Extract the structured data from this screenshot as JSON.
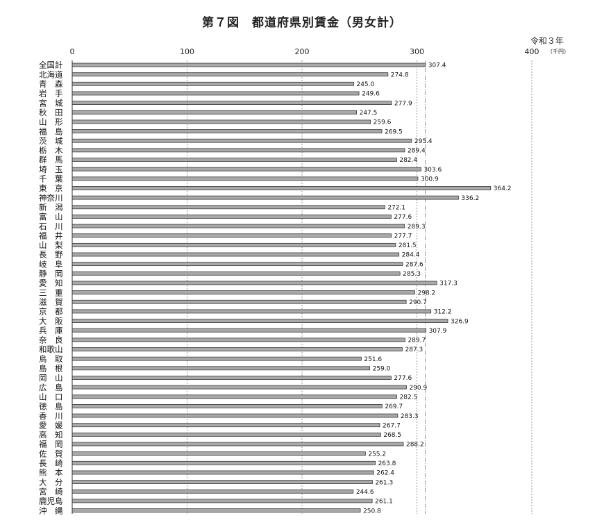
{
  "chart_data": {
    "type": "bar",
    "orientation": "horizontal",
    "title": "第７図　都道府県別賃金（男女計）",
    "note": "令和３年",
    "unit": "（千円）",
    "xlim": [
      0,
      400
    ],
    "xticks": [
      0,
      100,
      200,
      300,
      400
    ],
    "reference_value": 307.4,
    "categories": [
      "全国計",
      "北海道",
      "青　森",
      "岩　手",
      "宮　城",
      "秋　田",
      "山　形",
      "福　島",
      "茨　城",
      "栃　木",
      "群　馬",
      "埼　玉",
      "千　葉",
      "東　京",
      "神奈川",
      "新　潟",
      "富　山",
      "石　川",
      "福　井",
      "山　梨",
      "長　野",
      "岐　阜",
      "静　岡",
      "愛　知",
      "三　重",
      "滋　賀",
      "京　都",
      "大　阪",
      "兵　庫",
      "奈　良",
      "和歌山",
      "鳥　取",
      "島　根",
      "岡　山",
      "広　島",
      "山　口",
      "徳　島",
      "香　川",
      "愛　媛",
      "高　知",
      "福　岡",
      "佐　賀",
      "長　崎",
      "熊　本",
      "大　分",
      "宮　崎",
      "鹿児島",
      "沖　縄"
    ],
    "values": [
      307.4,
      274.8,
      245.0,
      249.6,
      277.9,
      247.5,
      259.6,
      269.5,
      295.4,
      289.4,
      282.4,
      303.6,
      300.9,
      364.2,
      336.2,
      272.1,
      277.6,
      289.3,
      277.7,
      281.5,
      284.4,
      287.6,
      285.3,
      317.3,
      298.2,
      290.7,
      312.2,
      326.9,
      307.9,
      289.7,
      287.3,
      251.6,
      259.0,
      277.6,
      290.9,
      282.5,
      269.7,
      283.3,
      267.7,
      268.5,
      288.2,
      255.2,
      263.8,
      262.4,
      261.3,
      244.6,
      261.1,
      250.8
    ],
    "value_labels": [
      "307.4",
      "274.8",
      "245.0",
      "249.6",
      "277.9",
      "247.5",
      "259.6",
      "269.5",
      "295.4",
      "289.4",
      "282.4",
      "303.6",
      "300.9",
      "364.2",
      "336.2",
      "272.1",
      "277.6",
      "289.3",
      "277.7",
      "281.5",
      "284.4",
      "287.6",
      "285.3",
      "317.3",
      "298.2",
      "290.7",
      "312.2",
      "326.9",
      "307.9",
      "289.7",
      "287.3",
      "251.6",
      "259.0",
      "277.6",
      "290.9",
      "282.5",
      "269.7",
      "283.3",
      "267.7",
      "268.5",
      "288.2",
      "255.2",
      "263.8",
      "262.4",
      "261.3",
      "244.6",
      "261.1",
      "250.8"
    ],
    "grid": true,
    "colors": {
      "bar": "#a9a9a9",
      "bar_edge": "#3a3a3a",
      "grid": "#555555"
    }
  }
}
